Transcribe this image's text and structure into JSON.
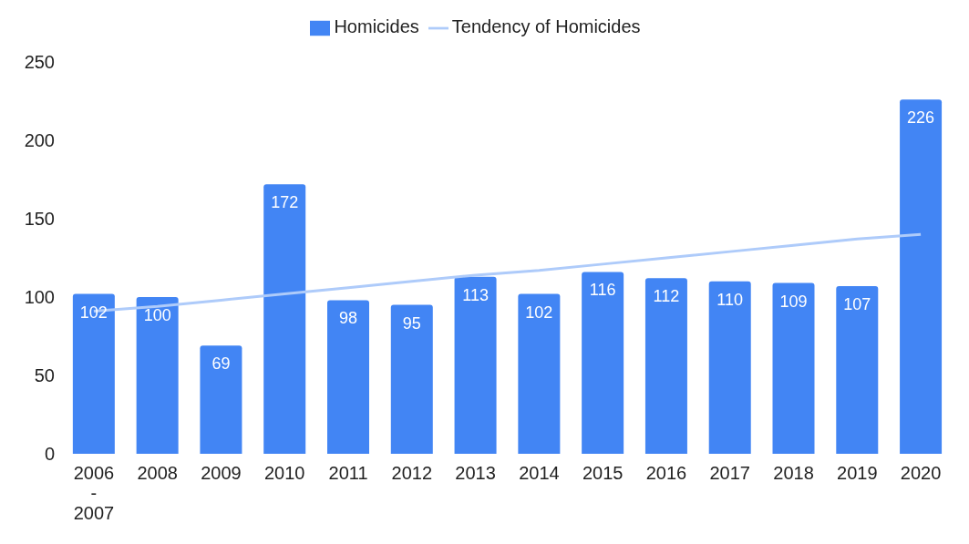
{
  "chart_data": {
    "type": "bar",
    "categories": [
      "2006 - 2007",
      "2008",
      "2009",
      "2010",
      "2011",
      "2012",
      "2013",
      "2014",
      "2015",
      "2016",
      "2017",
      "2018",
      "2019",
      "2020"
    ],
    "series": [
      {
        "name": "Homicides",
        "color": "#4285f4",
        "values": [
          102,
          100,
          69,
          172,
          98,
          95,
          113,
          102,
          116,
          112,
          110,
          109,
          107,
          226
        ],
        "value_labels": [
          "102",
          "100",
          "69",
          "172",
          "98",
          "95",
          "113",
          "102",
          "116",
          "112",
          "110",
          "109",
          "107",
          "226"
        ]
      },
      {
        "name": "Tendency of Homicides",
        "type": "line",
        "color": "#aecbfa",
        "values": [
          91,
          94,
          98,
          102,
          106,
          110,
          114,
          117,
          121,
          125,
          129,
          133,
          137,
          140
        ]
      }
    ],
    "ylim": [
      0,
      250
    ],
    "yticks": [
      0,
      50,
      100,
      150,
      200,
      250
    ],
    "legend": "top",
    "marker": "none",
    "line_style": "solid"
  }
}
